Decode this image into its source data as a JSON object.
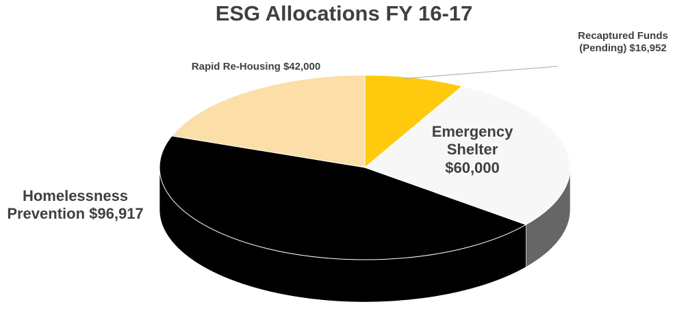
{
  "chart_data": {
    "type": "pie3d",
    "title": "ESG Allocations FY 16-17",
    "categories": [
      "Recaptured Funds (Pending)",
      "Emergency Shelter",
      "Homelessness Prevention",
      "Rapid Re-Housing"
    ],
    "values": [
      16952,
      60000,
      96917,
      42000
    ],
    "value_labels": [
      "$16,952",
      "$60,000",
      "$96,917",
      "$42,000"
    ],
    "colors": [
      "#ffc90e",
      "#f7f7f7",
      "#000000",
      "#fbdea8"
    ],
    "side_colors": [
      "#c79a00",
      "#666666",
      "#000000",
      "#c9ad7c"
    ]
  }
}
